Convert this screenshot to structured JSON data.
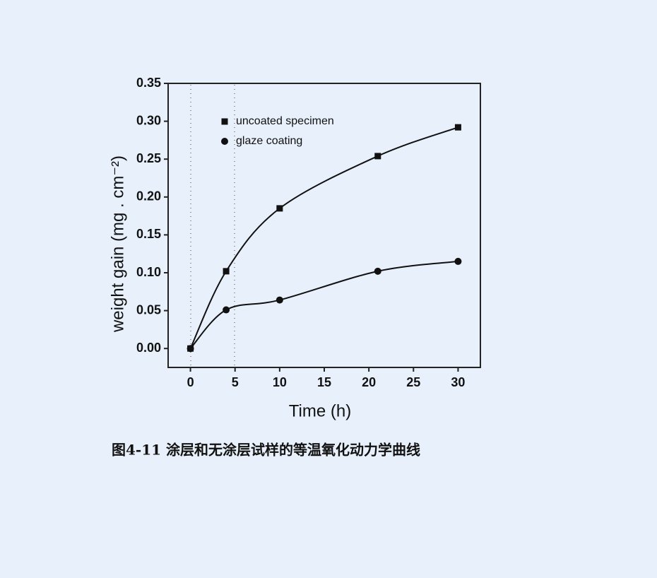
{
  "chart_data": {
    "type": "scatter",
    "caption": "图4-11 涂层和无涂层试样的等温氧化动力学曲线",
    "xlabel": "Time (h)",
    "ylabel": "weight gain (mg . cm⁻²)",
    "x": [
      0,
      4,
      10,
      21,
      30
    ],
    "series": [
      {
        "name": "uncoated specimen",
        "color": "#111111",
        "marker": "square",
        "values": [
          0,
          0.102,
          0.185,
          0.254,
          0.292
        ]
      },
      {
        "name": "glaze coating",
        "color": "#111111",
        "marker": "circle",
        "values": [
          0,
          0.051,
          0.064,
          0.102,
          0.115
        ]
      }
    ],
    "xlim": [
      -2.5,
      32.5
    ],
    "ylim": [
      -0.025,
      0.35
    ],
    "xticks": [
      0,
      5,
      10,
      15,
      20,
      25,
      30
    ],
    "yticks": [
      {
        "value": 0,
        "label": "0.00"
      },
      {
        "value": 0.05,
        "label": "0.05"
      },
      {
        "value": 0.1,
        "label": "0.10"
      },
      {
        "value": 0.15,
        "label": "0.15"
      },
      {
        "value": 0.2,
        "label": "0.20"
      },
      {
        "value": 0.25,
        "label": "0.25"
      },
      {
        "value": 0.3,
        "label": "0.30"
      },
      {
        "value": 0.35,
        "label": "0.35"
      }
    ],
    "legend": "upper left",
    "grid": false
  }
}
